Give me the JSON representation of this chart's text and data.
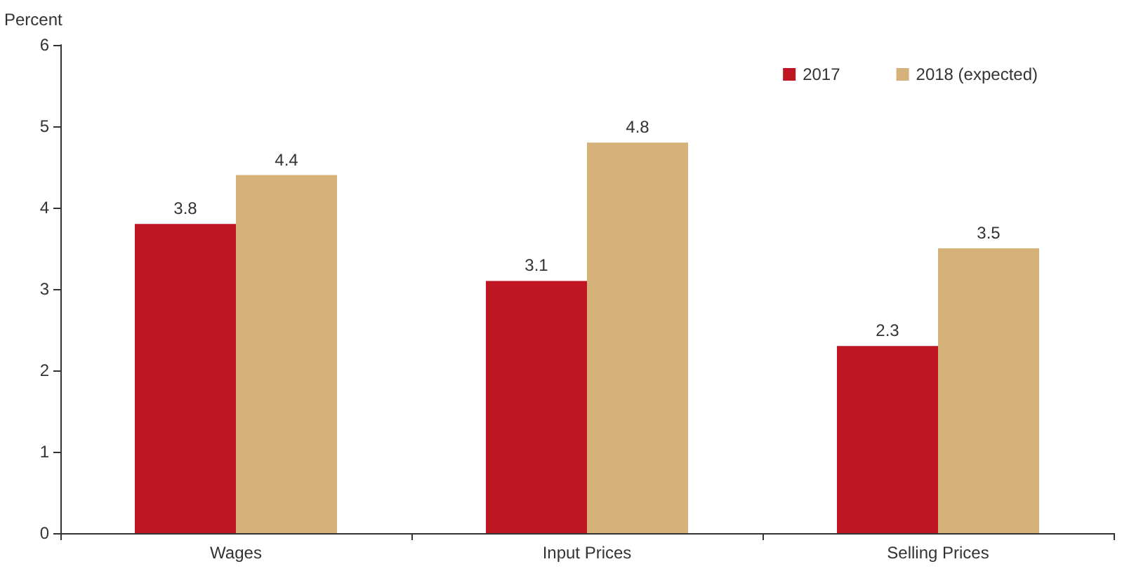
{
  "chart_data": {
    "type": "bar",
    "ylabel": "Percent",
    "categories": [
      "Wages",
      "Input Prices",
      "Selling Prices"
    ],
    "series": [
      {
        "name": "2017",
        "color": "#be1622",
        "values": [
          3.8,
          3.1,
          2.3
        ]
      },
      {
        "name": "2018 (expected)",
        "color": "#d4b27a",
        "values": [
          4.4,
          4.8,
          3.5
        ]
      }
    ],
    "ylim": [
      0,
      6
    ],
    "yticks": [
      0,
      1,
      2,
      3,
      4,
      5,
      6
    ],
    "grid": false,
    "legend": "top right",
    "data_labels": true
  }
}
